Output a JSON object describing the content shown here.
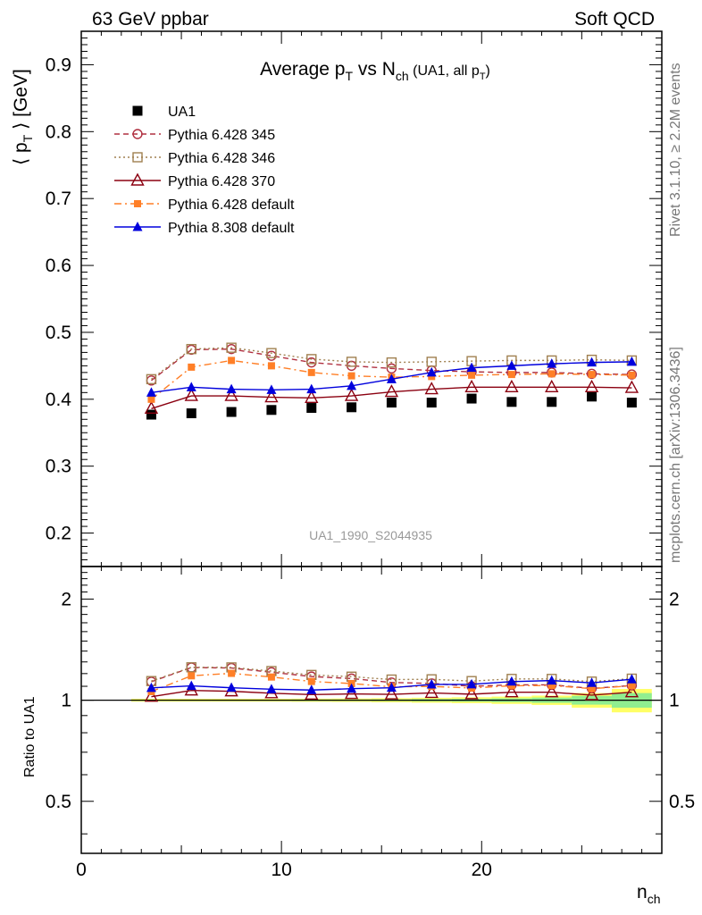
{
  "header": {
    "left": "63 GeV ppbar",
    "right": "Soft QCD"
  },
  "side": {
    "rivet": "Rivet 3.1.10, ≥ 2.2M events",
    "mcplots": "mcplots.cern.ch [arXiv:1306.3436]"
  },
  "chart_data": [
    {
      "type": "line",
      "title": "Average p_T vs N_ch (UA1, all p_T)",
      "title_parts": {
        "a": "Average p",
        "a_sub": "T",
        "b": " vs N",
        "b_sub": "ch",
        "c": " (UA1, all p",
        "c_sub": "T",
        "d": ")"
      },
      "ylabel": "⟨ p_T ⟩ [GeV]",
      "ylabel_parts": {
        "a": "⟨ p",
        "a_sub": "T",
        "b": " ⟩ [GeV]"
      },
      "xlabel": "n_ch",
      "xlabel_parts": {
        "a": "n",
        "a_sub": "ch"
      },
      "watermark": "UA1_1990_S2044935",
      "xlim": [
        0,
        29
      ],
      "ylim": [
        0.15,
        0.95
      ],
      "yticks": [
        "0.2",
        "0.3",
        "0.4",
        "0.5",
        "0.6",
        "0.7",
        "0.8",
        "0.9"
      ],
      "ytick_values": [
        0.2,
        0.3,
        0.4,
        0.5,
        0.6,
        0.7,
        0.8,
        0.9
      ],
      "xticks": [
        "0",
        "10",
        "20"
      ],
      "xtick_values": [
        0,
        10,
        20
      ],
      "legend_position": "top-left",
      "x": [
        3.5,
        5.5,
        7.5,
        9.5,
        11.5,
        13.5,
        15.5,
        17.5,
        19.5,
        21.5,
        23.5,
        25.5,
        27.5
      ],
      "series": [
        {
          "name": "UA1",
          "color": "#000000",
          "marker": "filled-square",
          "line": "none",
          "values": [
            0.377,
            0.379,
            0.381,
            0.384,
            0.387,
            0.388,
            0.395,
            0.395,
            0.401,
            0.396,
            0.396,
            0.404,
            0.395
          ]
        },
        {
          "name": "Pythia 6.428 345",
          "color": "#b03040",
          "marker": "open-circle",
          "line": "dashed",
          "values": [
            0.428,
            0.474,
            0.475,
            0.465,
            0.455,
            0.45,
            0.446,
            0.443,
            0.441,
            0.44,
            0.44,
            0.438,
            0.437
          ]
        },
        {
          "name": "Pythia 6.428 346",
          "color": "#a08050",
          "marker": "open-square",
          "line": "dotted",
          "values": [
            0.43,
            0.475,
            0.477,
            0.469,
            0.46,
            0.456,
            0.455,
            0.456,
            0.457,
            0.458,
            0.458,
            0.459,
            0.458
          ]
        },
        {
          "name": "Pythia 6.428 370",
          "color": "#8b0010",
          "marker": "open-triangle",
          "line": "solid",
          "values": [
            0.386,
            0.405,
            0.405,
            0.403,
            0.402,
            0.405,
            0.411,
            0.415,
            0.418,
            0.418,
            0.418,
            0.418,
            0.417
          ]
        },
        {
          "name": "Pythia 6.428 default",
          "color": "#ff7f27",
          "marker": "filled-square-small",
          "line": "dashdot",
          "values": [
            0.4,
            0.448,
            0.458,
            0.45,
            0.44,
            0.435,
            0.433,
            0.434,
            0.436,
            0.437,
            0.438,
            0.437,
            0.436
          ]
        },
        {
          "name": "Pythia 8.308 default",
          "color": "#0000dd",
          "marker": "filled-triangle",
          "line": "solid",
          "values": [
            0.41,
            0.418,
            0.415,
            0.414,
            0.415,
            0.42,
            0.43,
            0.44,
            0.447,
            0.45,
            0.453,
            0.455,
            0.456
          ]
        }
      ]
    },
    {
      "type": "line",
      "ylabel": "Ratio to UA1",
      "yscale": "log",
      "ylim": [
        0.35,
        2.5
      ],
      "yticks": [
        "0.5",
        "1",
        "2"
      ],
      "ytick_values": [
        0.5,
        1,
        2
      ],
      "xlim": [
        0,
        29
      ],
      "x": [
        3.5,
        5.5,
        7.5,
        9.5,
        11.5,
        13.5,
        15.5,
        17.5,
        19.5,
        21.5,
        23.5,
        25.5,
        27.5
      ],
      "x_edges": [
        2.5,
        4.5,
        6.5,
        8.5,
        10.5,
        12.5,
        14.5,
        16.5,
        18.5,
        20.5,
        22.5,
        24.5,
        26.5,
        28.5
      ],
      "uncertainty_bands": {
        "stat_color": "#90ee90",
        "total_color": "#ffff66",
        "stat": [
          0.004,
          0.004,
          0.004,
          0.004,
          0.005,
          0.005,
          0.006,
          0.008,
          0.01,
          0.013,
          0.018,
          0.03,
          0.05
        ],
        "total": [
          0.01,
          0.01,
          0.01,
          0.01,
          0.011,
          0.012,
          0.014,
          0.017,
          0.02,
          0.025,
          0.032,
          0.05,
          0.08
        ]
      },
      "series": [
        {
          "name": "Pythia 6.428 345",
          "color": "#b03040",
          "marker": "open-circle",
          "line": "dashed",
          "values": [
            1.135,
            1.251,
            1.247,
            1.211,
            1.176,
            1.16,
            1.129,
            1.122,
            1.1,
            1.111,
            1.111,
            1.084,
            1.106
          ]
        },
        {
          "name": "Pythia 6.428 346",
          "color": "#a08050",
          "marker": "open-square",
          "line": "dotted",
          "values": [
            1.14,
            1.253,
            1.252,
            1.221,
            1.189,
            1.175,
            1.152,
            1.154,
            1.14,
            1.157,
            1.157,
            1.136,
            1.159
          ]
        },
        {
          "name": "Pythia 6.428 370",
          "color": "#8b0010",
          "marker": "open-triangle",
          "line": "solid",
          "values": [
            1.024,
            1.069,
            1.063,
            1.049,
            1.039,
            1.044,
            1.041,
            1.051,
            1.042,
            1.056,
            1.056,
            1.035,
            1.056
          ]
        },
        {
          "name": "Pythia 6.428 default",
          "color": "#ff7f27",
          "marker": "filled-square-small",
          "line": "dashdot",
          "values": [
            1.061,
            1.182,
            1.202,
            1.172,
            1.137,
            1.121,
            1.096,
            1.099,
            1.087,
            1.104,
            1.106,
            1.082,
            1.104
          ]
        },
        {
          "name": "Pythia 8.308 default",
          "color": "#0000dd",
          "marker": "filled-triangle",
          "line": "solid",
          "values": [
            1.088,
            1.103,
            1.089,
            1.078,
            1.072,
            1.082,
            1.089,
            1.114,
            1.115,
            1.136,
            1.144,
            1.126,
            1.154
          ]
        }
      ]
    }
  ]
}
